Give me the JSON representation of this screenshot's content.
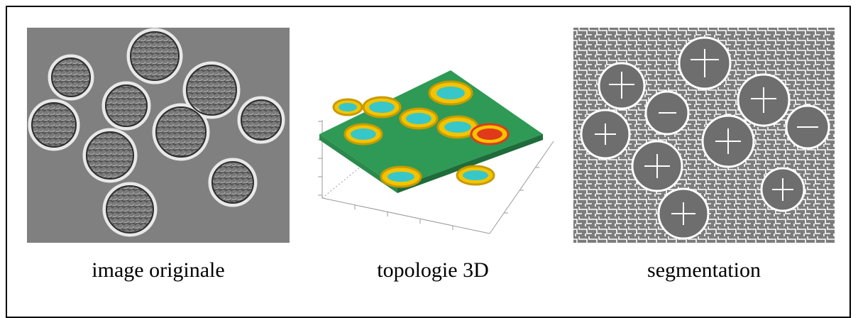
{
  "captions": {
    "original": "image originale",
    "topology": "topologie 3D",
    "segmentation": "segmentation"
  },
  "colors": {
    "background_gray": "#7f7f7f",
    "surface_green": "#2e9a55",
    "peak_yellow": "#f2c400",
    "peak_red": "#e03a1a",
    "segmentation_lines": "#ffffff"
  }
}
